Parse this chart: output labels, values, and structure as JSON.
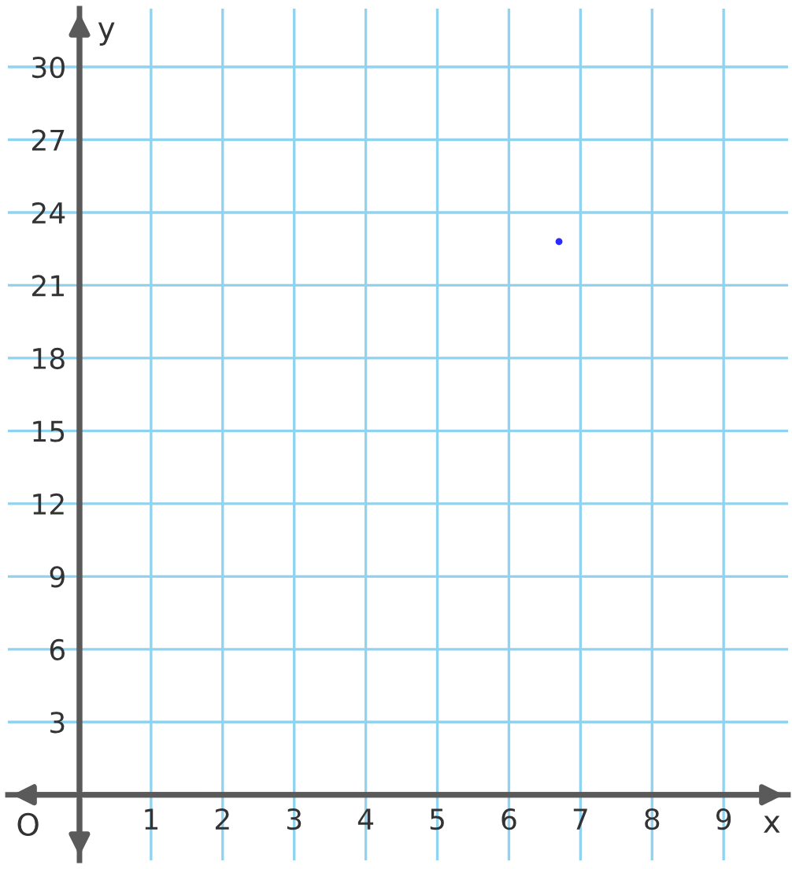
{
  "chart_data": {
    "type": "scatter",
    "xlabel": "x",
    "ylabel": "y",
    "x": [
      6.7
    ],
    "values": [
      22.8
    ],
    "color": "#2b2bff",
    "marker": "circle",
    "xlim": [
      -1,
      9.9
    ],
    "ylim": [
      -2.7,
      32.4
    ],
    "xticks": [
      1,
      2,
      3,
      4,
      5,
      6,
      7,
      8,
      9
    ],
    "yticks": [
      3,
      6,
      9,
      12,
      15,
      18,
      21,
      24,
      27,
      30
    ],
    "grid": true,
    "annotations": [
      "O"
    ]
  }
}
